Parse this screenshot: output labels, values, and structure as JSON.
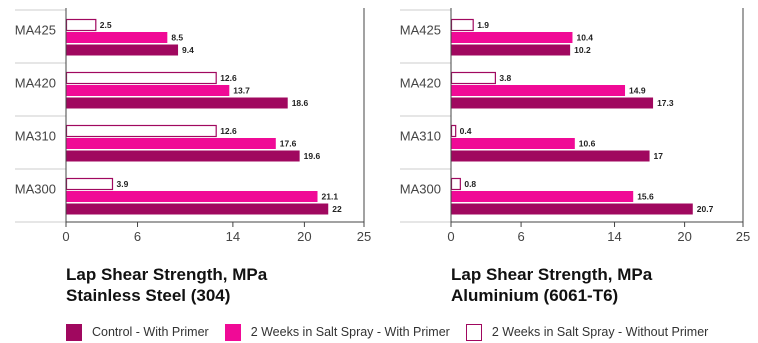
{
  "colors": {
    "control": "#A0085F",
    "with_primer": "#F00A96",
    "without_primer_stroke": "#A0085F",
    "without_primer_fill": "#ffffff"
  },
  "legend": [
    {
      "key": "control",
      "label": "Control - With Primer"
    },
    {
      "key": "with_primer",
      "label": "2 Weeks in Salt Spray - With Primer"
    },
    {
      "key": "without_primer",
      "label": "2 Weeks in Salt Spray - Without Primer"
    }
  ],
  "chart_data": [
    {
      "type": "bar",
      "orientation": "horizontal",
      "title_lines": [
        "Lap Shear Strength, MPa",
        "Stainless Steel (304)"
      ],
      "categories": [
        "MA425",
        "MA420",
        "MA310",
        "MA300"
      ],
      "xlim": [
        0,
        25
      ],
      "xticks": [
        0,
        6,
        14,
        20,
        25
      ],
      "series": [
        {
          "name": "2 Weeks in Salt Spray - Without Primer",
          "key": "without_primer",
          "values": [
            2.5,
            12.6,
            12.6,
            3.9
          ]
        },
        {
          "name": "2 Weeks in Salt Spray - With Primer",
          "key": "with_primer",
          "values": [
            8.5,
            13.7,
            17.6,
            21.1
          ]
        },
        {
          "name": "Control - With Primer",
          "key": "control",
          "values": [
            9.4,
            18.6,
            19.6,
            22
          ]
        }
      ]
    },
    {
      "type": "bar",
      "orientation": "horizontal",
      "title_lines": [
        "Lap Shear Strength, MPa",
        "Aluminium (6061-T6)"
      ],
      "categories": [
        "MA425",
        "MA420",
        "MA310",
        "MA300"
      ],
      "xlim": [
        0,
        25
      ],
      "xticks": [
        0,
        6,
        14,
        20,
        25
      ],
      "series": [
        {
          "name": "2 Weeks in Salt Spray - Without Primer",
          "key": "without_primer",
          "values": [
            1.9,
            3.8,
            0.4,
            0.8
          ]
        },
        {
          "name": "2 Weeks in Salt Spray - With Primer",
          "key": "with_primer",
          "values": [
            10.4,
            14.9,
            10.6,
            15.6
          ]
        },
        {
          "name": "Control - With Primer",
          "key": "control",
          "values": [
            10.2,
            17.3,
            17,
            20.7
          ]
        }
      ]
    }
  ]
}
